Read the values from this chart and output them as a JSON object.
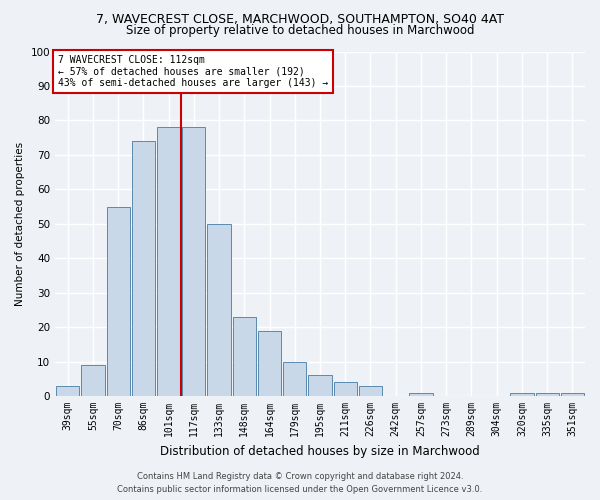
{
  "title1": "7, WAVECREST CLOSE, MARCHWOOD, SOUTHAMPTON, SO40 4AT",
  "title2": "Size of property relative to detached houses in Marchwood",
  "xlabel": "Distribution of detached houses by size in Marchwood",
  "ylabel": "Number of detached properties",
  "categories": [
    "39sqm",
    "55sqm",
    "70sqm",
    "86sqm",
    "101sqm",
    "117sqm",
    "133sqm",
    "148sqm",
    "164sqm",
    "179sqm",
    "195sqm",
    "211sqm",
    "226sqm",
    "242sqm",
    "257sqm",
    "273sqm",
    "289sqm",
    "304sqm",
    "320sqm",
    "335sqm",
    "351sqm"
  ],
  "values": [
    3,
    9,
    55,
    74,
    78,
    78,
    50,
    23,
    19,
    10,
    6,
    4,
    3,
    0,
    1,
    0,
    0,
    0,
    1,
    1,
    1
  ],
  "bar_color": "#c8d8e8",
  "bar_edge_color": "#5a8ab0",
  "vline_color": "#cc0000",
  "vline_index": 4.5,
  "annotation_title": "7 WAVECREST CLOSE: 112sqm",
  "annotation_line1": "← 57% of detached houses are smaller (192)",
  "annotation_line2": "43% of semi-detached houses are larger (143) →",
  "annotation_box_color": "#ffffff",
  "annotation_box_edge": "#cc0000",
  "footer1": "Contains HM Land Registry data © Crown copyright and database right 2024.",
  "footer2": "Contains public sector information licensed under the Open Government Licence v3.0.",
  "ylim": [
    0,
    100
  ],
  "yticks": [
    0,
    10,
    20,
    30,
    40,
    50,
    60,
    70,
    80,
    90,
    100
  ],
  "background_color": "#eef2f7",
  "grid_color": "#ffffff",
  "title1_fontsize": 9,
  "title2_fontsize": 8.5,
  "xlabel_fontsize": 8.5,
  "ylabel_fontsize": 7.5,
  "tick_fontsize": 7,
  "footer_fontsize": 6,
  "ann_fontsize": 7
}
